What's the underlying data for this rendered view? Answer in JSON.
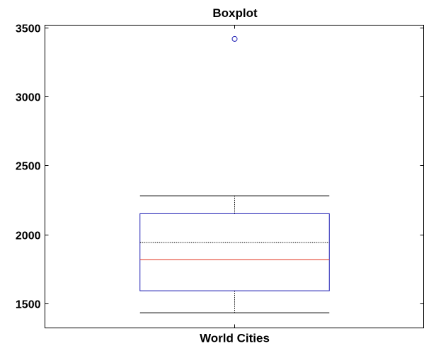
{
  "chart_data": {
    "type": "box",
    "title": "Boxplot",
    "xlabel": "",
    "ylabel": "",
    "categories": [
      "World Cities"
    ],
    "ylim": [
      1320,
      3520
    ],
    "yticks": [
      1500,
      2000,
      2500,
      3000,
      3500
    ],
    "ytick_labels": [
      "1500",
      "2000",
      "2500",
      "3000",
      "3500"
    ],
    "grid": false,
    "boxes": [
      {
        "category": "World Cities",
        "whisker_low": 1430,
        "q1": 1590,
        "median": 1815,
        "mean": 1940,
        "q3": 2150,
        "whisker_high": 2280,
        "outliers": [
          3420
        ]
      }
    ],
    "colors": {
      "box": "#1f1fb4",
      "median": "#e0301e",
      "mean": "#000000",
      "whisker": "#000000",
      "cap": "#000000",
      "outlier": "#1f1fb4",
      "axis": "#000000"
    }
  }
}
